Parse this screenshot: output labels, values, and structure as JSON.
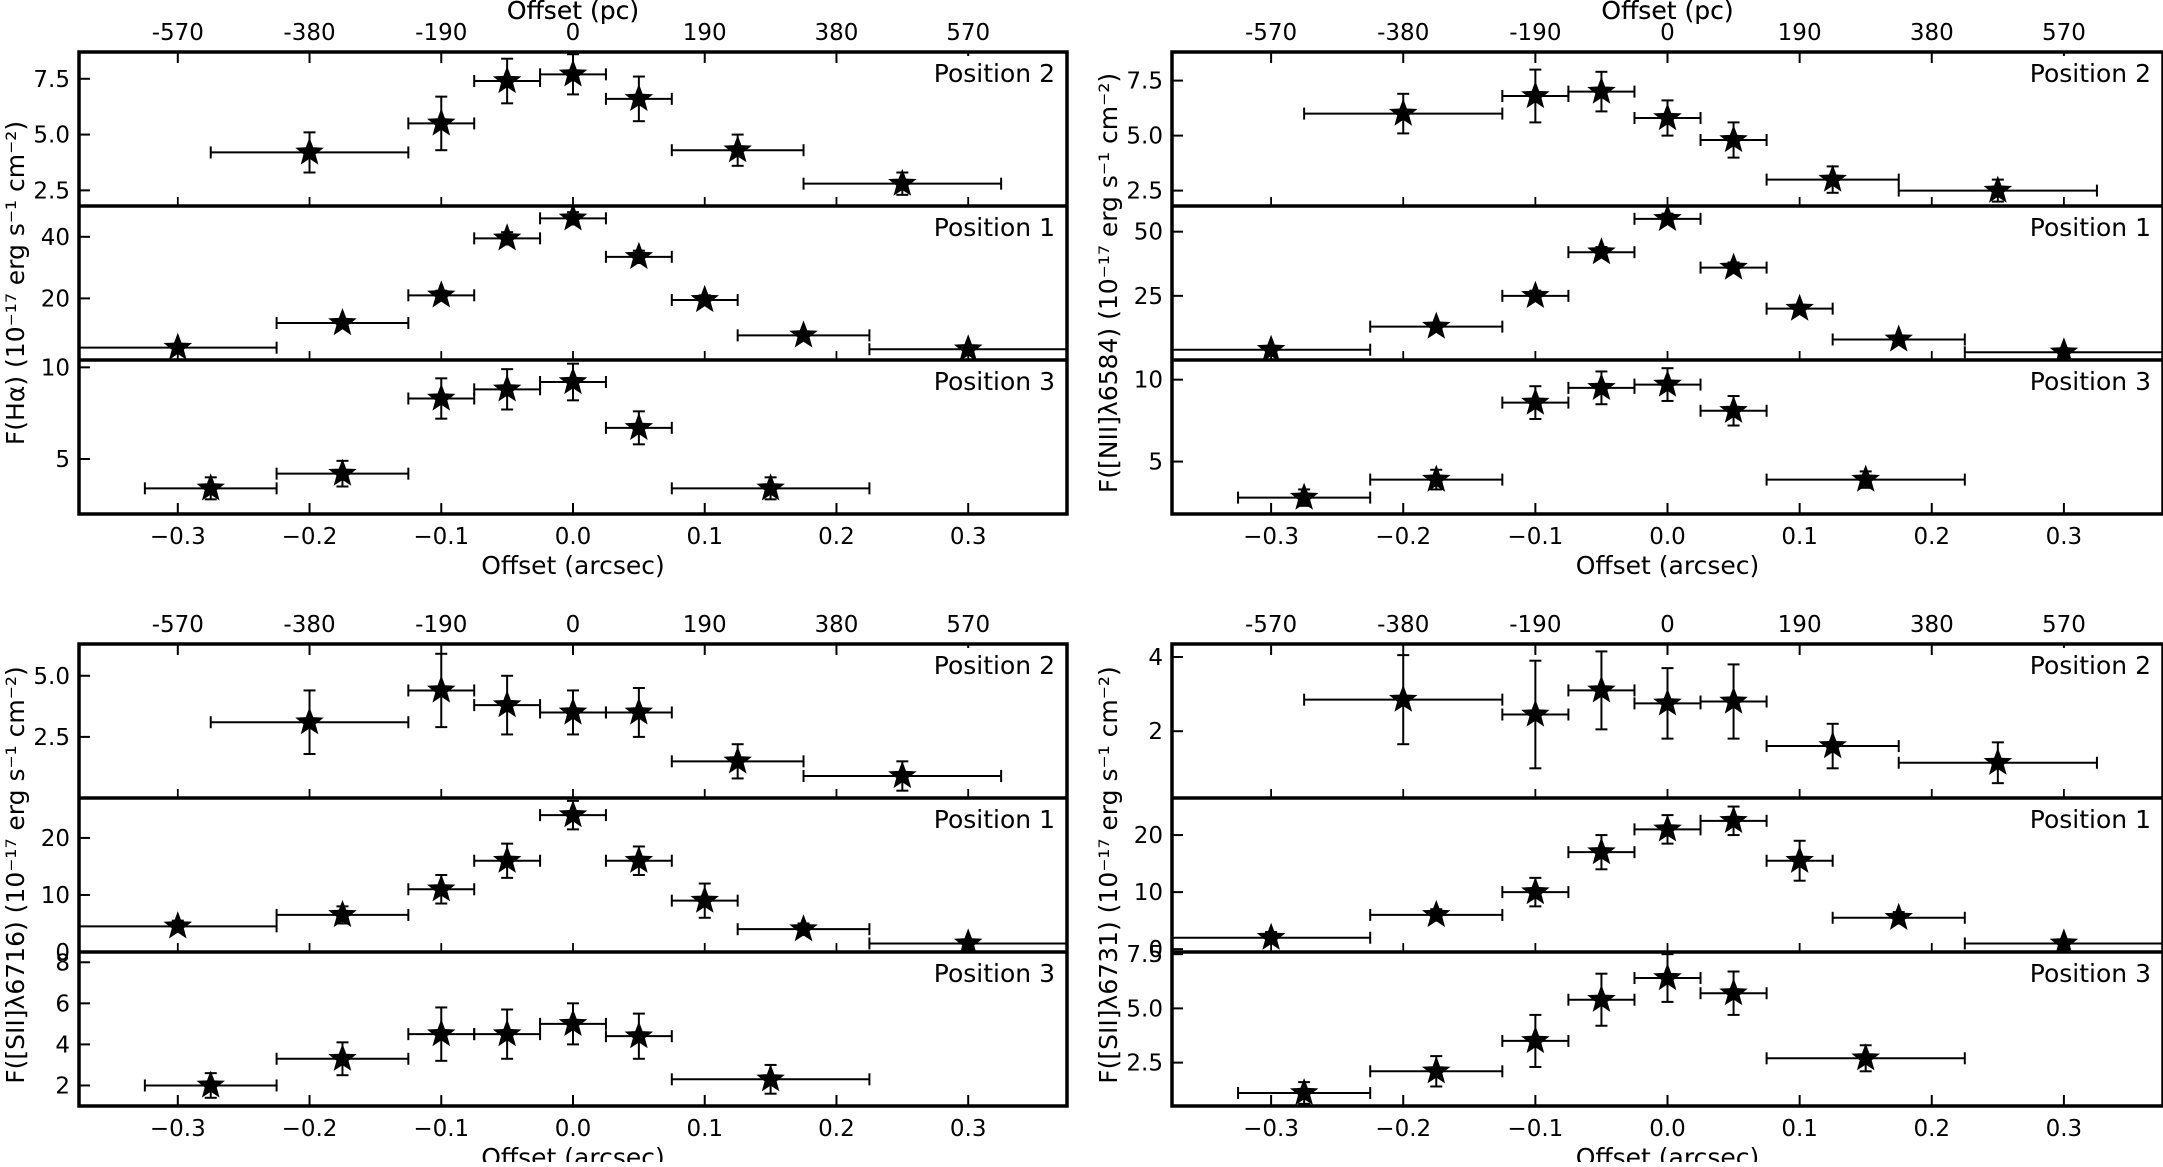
{
  "chart_data": [
    {
      "type": "scatter",
      "top_xlabel": "Offset (pc)",
      "top_ticks": [
        "-570",
        "-380",
        "-190",
        "0",
        "190",
        "380",
        "570"
      ],
      "xlabel": "Offset (arcsec)",
      "ylabel": "F(Hα) (10⁻¹⁷ erg s⁻¹ cm⁻²)",
      "xlim": [
        -0.375,
        0.375
      ],
      "xticks": [
        -0.3,
        -0.2,
        -0.1,
        0.0,
        0.1,
        0.2,
        0.3
      ],
      "xtick_labels": [
        "−0.3",
        "−0.2",
        "−0.1",
        "0.0",
        "0.1",
        "0.2",
        "0.3"
      ],
      "subplots": [
        {
          "label": "Position 2",
          "ylim": [
            1.8,
            8.7
          ],
          "yticks": [
            2.5,
            5.0,
            7.5
          ],
          "ytick_labels": [
            "2.5",
            "5.0",
            "7.5"
          ],
          "points": [
            {
              "x": -0.2,
              "xerr": 0.075,
              "y": 4.2,
              "yerr": 0.9
            },
            {
              "x": -0.1,
              "xerr": 0.025,
              "y": 5.5,
              "yerr": 1.2
            },
            {
              "x": -0.05,
              "xerr": 0.025,
              "y": 7.4,
              "yerr": 1.0
            },
            {
              "x": 0.0,
              "xerr": 0.025,
              "y": 7.7,
              "yerr": 0.9
            },
            {
              "x": 0.05,
              "xerr": 0.025,
              "y": 6.6,
              "yerr": 1.0
            },
            {
              "x": 0.125,
              "xerr": 0.05,
              "y": 4.3,
              "yerr": 0.7
            },
            {
              "x": 0.25,
              "xerr": 0.075,
              "y": 2.8,
              "yerr": 0.5
            }
          ]
        },
        {
          "label": "Position 1",
          "ylim": [
            0,
            50
          ],
          "yticks": [
            20,
            40
          ],
          "ytick_labels": [
            "20",
            "40"
          ],
          "points": [
            {
              "x": -0.3,
              "xerr": 0.075,
              "y": 4,
              "yerr": 1
            },
            {
              "x": -0.175,
              "xerr": 0.05,
              "y": 12,
              "yerr": 1
            },
            {
              "x": -0.1,
              "xerr": 0.025,
              "y": 21,
              "yerr": 1.5
            },
            {
              "x": -0.05,
              "xerr": 0.025,
              "y": 39.5,
              "yerr": 2
            },
            {
              "x": 0.0,
              "xerr": 0.025,
              "y": 46,
              "yerr": 2
            },
            {
              "x": 0.05,
              "xerr": 0.025,
              "y": 33.5,
              "yerr": 2
            },
            {
              "x": 0.1,
              "xerr": 0.025,
              "y": 19.5,
              "yerr": 1.5
            },
            {
              "x": 0.175,
              "xerr": 0.05,
              "y": 8,
              "yerr": 1
            },
            {
              "x": 0.3,
              "xerr": 0.075,
              "y": 3.5,
              "yerr": 1
            }
          ]
        },
        {
          "label": "Position 3",
          "ylim": [
            2.0,
            10.4
          ],
          "yticks": [
            5,
            10
          ],
          "ytick_labels": [
            "5",
            "10"
          ],
          "points": [
            {
              "x": -0.275,
              "xerr": 0.05,
              "y": 3.4,
              "yerr": 0.6
            },
            {
              "x": -0.175,
              "xerr": 0.05,
              "y": 4.2,
              "yerr": 0.7
            },
            {
              "x": -0.1,
              "xerr": 0.025,
              "y": 8.3,
              "yerr": 1.1
            },
            {
              "x": -0.05,
              "xerr": 0.025,
              "y": 8.8,
              "yerr": 1.1
            },
            {
              "x": 0.0,
              "xerr": 0.025,
              "y": 9.2,
              "yerr": 1.0
            },
            {
              "x": 0.05,
              "xerr": 0.025,
              "y": 6.7,
              "yerr": 0.9
            },
            {
              "x": 0.15,
              "xerr": 0.075,
              "y": 3.4,
              "yerr": 0.6
            }
          ]
        }
      ]
    },
    {
      "type": "scatter",
      "top_xlabel": "Offset (pc)",
      "top_ticks": [
        "-570",
        "-380",
        "-190",
        "0",
        "190",
        "380",
        "570"
      ],
      "xlabel": "Offset (arcsec)",
      "ylabel": "F([NII]λ6584) (10⁻¹⁷ erg s⁻¹ cm⁻²)",
      "xlim": [
        -0.375,
        0.375
      ],
      "xticks": [
        -0.3,
        -0.2,
        -0.1,
        0.0,
        0.1,
        0.2,
        0.3
      ],
      "xtick_labels": [
        "−0.3",
        "−0.2",
        "−0.1",
        "0.0",
        "0.1",
        "0.2",
        "0.3"
      ],
      "subplots": [
        {
          "label": "Position 2",
          "ylim": [
            1.8,
            8.8
          ],
          "yticks": [
            2.5,
            5.0,
            7.5
          ],
          "ytick_labels": [
            "2.5",
            "5.0",
            "7.5"
          ],
          "points": [
            {
              "x": -0.2,
              "xerr": 0.075,
              "y": 6.0,
              "yerr": 0.9
            },
            {
              "x": -0.1,
              "xerr": 0.025,
              "y": 6.8,
              "yerr": 1.2
            },
            {
              "x": -0.05,
              "xerr": 0.025,
              "y": 7.0,
              "yerr": 0.9
            },
            {
              "x": 0.0,
              "xerr": 0.025,
              "y": 5.8,
              "yerr": 0.8
            },
            {
              "x": 0.05,
              "xerr": 0.025,
              "y": 4.8,
              "yerr": 0.8
            },
            {
              "x": 0.125,
              "xerr": 0.05,
              "y": 3.0,
              "yerr": 0.6
            },
            {
              "x": 0.25,
              "xerr": 0.075,
              "y": 2.5,
              "yerr": 0.5
            }
          ]
        },
        {
          "label": "Position 1",
          "ylim": [
            0,
            60
          ],
          "yticks": [
            25,
            50
          ],
          "ytick_labels": [
            "25",
            "50"
          ],
          "points": [
            {
              "x": -0.3,
              "xerr": 0.075,
              "y": 4,
              "yerr": 1
            },
            {
              "x": -0.175,
              "xerr": 0.05,
              "y": 13,
              "yerr": 1.5
            },
            {
              "x": -0.1,
              "xerr": 0.025,
              "y": 25,
              "yerr": 2
            },
            {
              "x": -0.05,
              "xerr": 0.025,
              "y": 42,
              "yerr": 2
            },
            {
              "x": 0.0,
              "xerr": 0.025,
              "y": 55,
              "yerr": 2
            },
            {
              "x": 0.05,
              "xerr": 0.025,
              "y": 36,
              "yerr": 2
            },
            {
              "x": 0.1,
              "xerr": 0.025,
              "y": 20,
              "yerr": 1.5
            },
            {
              "x": 0.175,
              "xerr": 0.05,
              "y": 8,
              "yerr": 1
            },
            {
              "x": 0.3,
              "xerr": 0.075,
              "y": 3,
              "yerr": 1
            }
          ]
        },
        {
          "label": "Position 3",
          "ylim": [
            1.8,
            11.2
          ],
          "yticks": [
            5,
            10
          ],
          "ytick_labels": [
            "5",
            "10"
          ],
          "points": [
            {
              "x": -0.275,
              "xerr": 0.05,
              "y": 2.8,
              "yerr": 0.5
            },
            {
              "x": -0.175,
              "xerr": 0.05,
              "y": 3.9,
              "yerr": 0.6
            },
            {
              "x": -0.1,
              "xerr": 0.025,
              "y": 8.6,
              "yerr": 1.0
            },
            {
              "x": -0.05,
              "xerr": 0.025,
              "y": 9.5,
              "yerr": 1.0
            },
            {
              "x": 0.0,
              "xerr": 0.025,
              "y": 9.7,
              "yerr": 1.0
            },
            {
              "x": 0.05,
              "xerr": 0.025,
              "y": 8.1,
              "yerr": 0.9
            },
            {
              "x": 0.15,
              "xerr": 0.075,
              "y": 3.9,
              "yerr": 0.5
            }
          ]
        }
      ]
    },
    {
      "type": "scatter",
      "top_xlabel": "Offset (pc)",
      "top_ticks": [
        "-570",
        "-380",
        "-190",
        "0",
        "190",
        "380",
        "570"
      ],
      "xlabel": "Offset (arcsec)",
      "ylabel": "F([SII]λ6716) (10⁻¹⁷ erg s⁻¹ cm⁻²)",
      "xlim": [
        -0.375,
        0.375
      ],
      "xticks": [
        -0.3,
        -0.2,
        -0.1,
        0.0,
        0.1,
        0.2,
        0.3
      ],
      "xtick_labels": [
        "−0.3",
        "−0.2",
        "−0.1",
        "0.0",
        "0.1",
        "0.2",
        "0.3"
      ],
      "subplots": [
        {
          "label": "Position 2",
          "ylim": [
            0,
            6.3
          ],
          "yticks": [
            2.5,
            5.0
          ],
          "ytick_labels": [
            "2.5",
            "5.0"
          ],
          "points": [
            {
              "x": -0.2,
              "xerr": 0.075,
              "y": 3.1,
              "yerr": 1.3
            },
            {
              "x": -0.1,
              "xerr": 0.025,
              "y": 4.4,
              "yerr": 1.5
            },
            {
              "x": -0.05,
              "xerr": 0.025,
              "y": 3.8,
              "yerr": 1.2
            },
            {
              "x": 0.0,
              "xerr": 0.025,
              "y": 3.5,
              "yerr": 0.9
            },
            {
              "x": 0.05,
              "xerr": 0.025,
              "y": 3.5,
              "yerr": 1.0
            },
            {
              "x": 0.125,
              "xerr": 0.05,
              "y": 1.5,
              "yerr": 0.7
            },
            {
              "x": 0.25,
              "xerr": 0.075,
              "y": 0.9,
              "yerr": 0.6
            }
          ]
        },
        {
          "label": "Position 1",
          "ylim": [
            0,
            27
          ],
          "yticks": [
            0,
            10,
            20
          ],
          "ytick_labels": [
            "0",
            "10",
            "20"
          ],
          "points": [
            {
              "x": -0.3,
              "xerr": 0.075,
              "y": 4.5,
              "yerr": 1
            },
            {
              "x": -0.175,
              "xerr": 0.05,
              "y": 6.5,
              "yerr": 1.5
            },
            {
              "x": -0.1,
              "xerr": 0.025,
              "y": 11,
              "yerr": 2.5
            },
            {
              "x": -0.05,
              "xerr": 0.025,
              "y": 16,
              "yerr": 3
            },
            {
              "x": 0.0,
              "xerr": 0.025,
              "y": 24,
              "yerr": 2.5
            },
            {
              "x": 0.05,
              "xerr": 0.025,
              "y": 16,
              "yerr": 2.5
            },
            {
              "x": 0.1,
              "xerr": 0.025,
              "y": 9,
              "yerr": 3
            },
            {
              "x": 0.175,
              "xerr": 0.05,
              "y": 4,
              "yerr": 1
            },
            {
              "x": 0.3,
              "xerr": 0.075,
              "y": 1.5,
              "yerr": 0.5
            }
          ]
        },
        {
          "label": "Position 3",
          "ylim": [
            1.0,
            8.5
          ],
          "yticks": [
            2,
            4,
            6,
            8
          ],
          "ytick_labels": [
            "2",
            "4",
            "6",
            "8"
          ],
          "points": [
            {
              "x": -0.275,
              "xerr": 0.05,
              "y": 2.0,
              "yerr": 0.6
            },
            {
              "x": -0.175,
              "xerr": 0.05,
              "y": 3.3,
              "yerr": 0.8
            },
            {
              "x": -0.1,
              "xerr": 0.025,
              "y": 4.5,
              "yerr": 1.3
            },
            {
              "x": -0.05,
              "xerr": 0.025,
              "y": 4.5,
              "yerr": 1.2
            },
            {
              "x": 0.0,
              "xerr": 0.025,
              "y": 5.0,
              "yerr": 1.0
            },
            {
              "x": 0.05,
              "xerr": 0.025,
              "y": 4.4,
              "yerr": 1.1
            },
            {
              "x": 0.15,
              "xerr": 0.075,
              "y": 2.3,
              "yerr": 0.7
            }
          ]
        }
      ]
    },
    {
      "type": "scatter",
      "top_xlabel": "Offset (pc)",
      "top_ticks": [
        "-570",
        "-380",
        "-190",
        "0",
        "190",
        "380",
        "570"
      ],
      "xlabel": "Offset (arcsec)",
      "ylabel": "F([SII]λ6731) (10⁻¹⁷ erg s⁻¹ cm⁻²)",
      "xlim": [
        -0.375,
        0.375
      ],
      "xticks": [
        -0.3,
        -0.2,
        -0.1,
        0.0,
        0.1,
        0.2,
        0.3
      ],
      "xtick_labels": [
        "−0.3",
        "−0.2",
        "−0.1",
        "0.0",
        "0.1",
        "0.2",
        "0.3"
      ],
      "subplots": [
        {
          "label": "Position 2",
          "ylim": [
            0.2,
            4.35
          ],
          "yticks": [
            2,
            4
          ],
          "ytick_labels": [
            "2",
            "4"
          ],
          "points": [
            {
              "x": -0.2,
              "xerr": 0.075,
              "y": 2.85,
              "yerr": 1.2
            },
            {
              "x": -0.1,
              "xerr": 0.025,
              "y": 2.45,
              "yerr": 1.45
            },
            {
              "x": -0.05,
              "xerr": 0.025,
              "y": 3.1,
              "yerr": 1.05
            },
            {
              "x": 0.0,
              "xerr": 0.025,
              "y": 2.75,
              "yerr": 0.95
            },
            {
              "x": 0.05,
              "xerr": 0.025,
              "y": 2.8,
              "yerr": 1.0
            },
            {
              "x": 0.125,
              "xerr": 0.05,
              "y": 1.6,
              "yerr": 0.6
            },
            {
              "x": 0.25,
              "xerr": 0.075,
              "y": 1.15,
              "yerr": 0.55
            }
          ]
        },
        {
          "label": "Position 1",
          "ylim": [
            -0.5,
            26.5
          ],
          "yticks": [
            0,
            10,
            20
          ],
          "ytick_labels": [
            "0",
            "10",
            "20"
          ],
          "points": [
            {
              "x": -0.3,
              "xerr": 0.075,
              "y": 2,
              "yerr": 1
            },
            {
              "x": -0.175,
              "xerr": 0.05,
              "y": 6,
              "yerr": 1
            },
            {
              "x": -0.1,
              "xerr": 0.025,
              "y": 10,
              "yerr": 2.5
            },
            {
              "x": -0.05,
              "xerr": 0.025,
              "y": 17,
              "yerr": 3
            },
            {
              "x": 0.0,
              "xerr": 0.025,
              "y": 21,
              "yerr": 2.5
            },
            {
              "x": 0.05,
              "xerr": 0.025,
              "y": 22.5,
              "yerr": 2.5
            },
            {
              "x": 0.1,
              "xerr": 0.025,
              "y": 15.5,
              "yerr": 3.5
            },
            {
              "x": 0.175,
              "xerr": 0.05,
              "y": 5.5,
              "yerr": 1
            },
            {
              "x": 0.3,
              "xerr": 0.075,
              "y": 1,
              "yerr": 0.5
            }
          ]
        },
        {
          "label": "Position 3",
          "ylim": [
            0.5,
            7.6
          ],
          "yticks": [
            2.5,
            5.0,
            7.5
          ],
          "ytick_labels": [
            "2.5",
            "5.0",
            "7.5"
          ],
          "points": [
            {
              "x": -0.275,
              "xerr": 0.05,
              "y": 1.1,
              "yerr": 0.5
            },
            {
              "x": -0.175,
              "xerr": 0.05,
              "y": 2.1,
              "yerr": 0.7
            },
            {
              "x": -0.1,
              "xerr": 0.025,
              "y": 3.5,
              "yerr": 1.2
            },
            {
              "x": -0.05,
              "xerr": 0.025,
              "y": 5.4,
              "yerr": 1.2
            },
            {
              "x": 0.0,
              "xerr": 0.025,
              "y": 6.4,
              "yerr": 1.1
            },
            {
              "x": 0.05,
              "xerr": 0.025,
              "y": 5.7,
              "yerr": 1.0
            },
            {
              "x": 0.15,
              "xerr": 0.075,
              "y": 2.7,
              "yerr": 0.6
            }
          ]
        }
      ]
    }
  ]
}
